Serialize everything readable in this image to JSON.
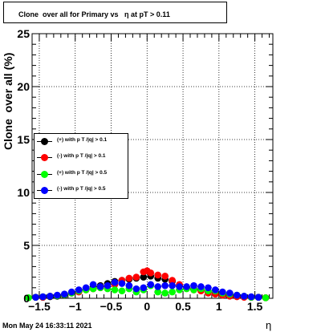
{
  "title": "Clone  over all for Primary vs   η at pT > 0.11",
  "footer": {
    "timestamp": "Mon May 24 16:33:11 2021"
  },
  "chart_data": {
    "type": "scatter",
    "title": "Clone  over all for Primary vs   η at pT > 0.11",
    "xlabel": "η",
    "ylabel": "Clone  over all (%)",
    "xlim": [
      -1.6,
      1.75
    ],
    "ylim": [
      0,
      25
    ],
    "xticks": [
      -1.5,
      -1,
      -0.5,
      0,
      0.5,
      1,
      1.5
    ],
    "xtick_labels": [
      "−1.5",
      "−1",
      "−0.5",
      "0",
      "0.5",
      "1",
      "1.5"
    ],
    "yticks": [
      0,
      5,
      10,
      15,
      20,
      25
    ],
    "ytick_labels": [
      "0",
      "5",
      "10",
      "15",
      "20",
      "25"
    ],
    "grid": true,
    "legend_position": "left",
    "series": [
      {
        "name": "(+) with p T /|q| > 0.1",
        "color": "#000000",
        "x": [
          -1.55,
          -1.45,
          -1.35,
          -1.25,
          -1.15,
          -1.05,
          -0.95,
          -0.85,
          -0.75,
          -0.65,
          -0.55,
          -0.45,
          -0.35,
          -0.25,
          -0.15,
          -0.05,
          0.05,
          0.15,
          0.25,
          0.35,
          0.45,
          0.55,
          0.65,
          0.75,
          0.85,
          0.95,
          1.05,
          1.15,
          1.25,
          1.35,
          1.45,
          1.55,
          1.65
        ],
        "y": [
          0.1,
          0.1,
          0.15,
          0.2,
          0.3,
          0.5,
          0.7,
          0.9,
          1.1,
          1.2,
          1.4,
          1.6,
          1.7,
          1.8,
          1.9,
          2.0,
          2.1,
          1.9,
          1.8,
          1.6,
          1.2,
          1.0,
          0.9,
          0.8,
          0.6,
          0.5,
          0.4,
          0.3,
          0.2,
          0.15,
          0.1,
          0.1,
          0.05
        ]
      },
      {
        "name": "(-) with p T /|q| > 0.1",
        "color": "#ff0000",
        "x": [
          -1.55,
          -1.45,
          -1.35,
          -1.25,
          -1.15,
          -1.05,
          -0.95,
          -0.85,
          -0.75,
          -0.65,
          -0.55,
          -0.45,
          -0.35,
          -0.25,
          -0.15,
          -0.05,
          0.0,
          0.05,
          0.15,
          0.25,
          0.35,
          0.45,
          0.55,
          0.65,
          0.75,
          0.85,
          0.95,
          1.05,
          1.15,
          1.25,
          1.35,
          1.45,
          1.55,
          1.65
        ],
        "y": [
          0.1,
          0.1,
          0.2,
          0.25,
          0.35,
          0.5,
          0.6,
          0.8,
          0.9,
          1.0,
          1.1,
          1.3,
          1.7,
          1.9,
          2.0,
          2.5,
          2.6,
          2.4,
          2.2,
          2.1,
          1.7,
          1.3,
          1.0,
          0.8,
          0.7,
          0.5,
          0.4,
          0.3,
          0.2,
          0.15,
          0.1,
          0.1,
          0.1,
          0.05
        ]
      },
      {
        "name": "(+) with p T /|q| > 0.5",
        "color": "#00ff00",
        "x": [
          -1.65,
          -1.55,
          -1.45,
          -1.35,
          -1.25,
          -1.15,
          -1.05,
          -0.95,
          -0.85,
          -0.75,
          -0.65,
          -0.55,
          -0.45,
          -0.35,
          -0.25,
          -0.15,
          -0.05,
          0.05,
          0.15,
          0.25,
          0.35,
          0.45,
          0.55,
          0.65,
          0.75,
          0.85,
          0.95,
          1.05,
          1.15,
          1.25,
          1.35,
          1.45,
          1.55,
          1.65
        ],
        "y": [
          0.05,
          0.1,
          0.15,
          0.2,
          0.25,
          0.35,
          0.5,
          0.7,
          0.8,
          0.9,
          1.0,
          0.9,
          0.8,
          0.7,
          0.9,
          0.6,
          0.8,
          1.2,
          0.6,
          0.5,
          0.6,
          0.8,
          0.9,
          0.8,
          0.9,
          0.7,
          0.7,
          0.5,
          0.4,
          0.3,
          0.2,
          0.1,
          0.1,
          0.05
        ]
      },
      {
        "name": "(-) with p T /|q| > 0.5",
        "color": "#0000ff",
        "x": [
          -1.55,
          -1.45,
          -1.35,
          -1.25,
          -1.15,
          -1.05,
          -0.95,
          -0.85,
          -0.75,
          -0.65,
          -0.55,
          -0.45,
          -0.35,
          -0.25,
          -0.15,
          -0.05,
          0.05,
          0.15,
          0.25,
          0.35,
          0.45,
          0.55,
          0.65,
          0.75,
          0.85,
          0.95,
          1.05,
          1.15,
          1.25,
          1.35,
          1.45,
          1.55
        ],
        "y": [
          0.1,
          0.15,
          0.2,
          0.3,
          0.4,
          0.6,
          0.8,
          1.0,
          1.3,
          1.1,
          1.2,
          1.5,
          1.4,
          1.2,
          0.9,
          1.0,
          1.3,
          1.1,
          1.2,
          1.2,
          1.1,
          1.1,
          1.2,
          1.1,
          1.0,
          0.8,
          0.6,
          0.5,
          0.3,
          0.2,
          0.15,
          0.1
        ]
      }
    ]
  }
}
